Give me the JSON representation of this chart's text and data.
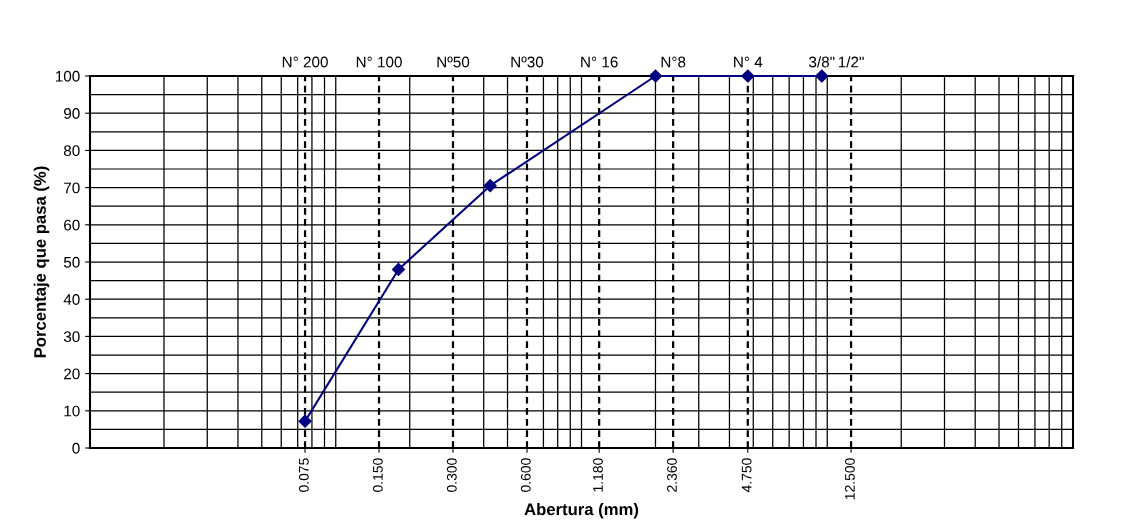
{
  "chart_data": {
    "type": "line",
    "xlabel": "Abertura (mm)",
    "ylabel": "Porcentaje que pasa (%)",
    "log": "x",
    "xlim": [
      0.01,
      100
    ],
    "ylim": [
      0,
      100
    ],
    "xticks": [
      {
        "value": 0.075,
        "label": "0.075"
      },
      {
        "value": 0.15,
        "label": "0.150"
      },
      {
        "value": 0.3,
        "label": "0.300"
      },
      {
        "value": 0.6,
        "label": "0.600"
      },
      {
        "value": 1.18,
        "label": "1.180"
      },
      {
        "value": 2.36,
        "label": "2.360"
      },
      {
        "value": 4.75,
        "label": "4.750"
      },
      {
        "value": 12.5,
        "label": "12.500"
      }
    ],
    "annotations": [
      {
        "text": "3/8\"",
        "x": 9.5,
        "y": 100
      },
      {
        "text": "1/2\"",
        "x": 12.5,
        "y": 100
      }
    ],
    "yticks": [
      0,
      10,
      20,
      30,
      40,
      50,
      60,
      70,
      80,
      90,
      100
    ],
    "grid": true,
    "marker": "diamond",
    "line_style": "solid",
    "series": [
      {
        "color": "#000080",
        "x": [
          0.075,
          0.18,
          0.425,
          2.0,
          4.75,
          9.5
        ],
        "values": [
          7.2,
          48,
          70.5,
          100,
          100,
          100
        ]
      }
    ],
    "ref_lines": [
      {
        "axis": "x",
        "value": 0.075,
        "label": "N° 200",
        "color": "#000000",
        "line_style": "dashed"
      },
      {
        "axis": "x",
        "value": 0.15,
        "label": "N° 100",
        "color": "#000000",
        "line_style": "dashed"
      },
      {
        "axis": "x",
        "value": 0.3,
        "label": "Nº50",
        "color": "#000000",
        "line_style": "dashed"
      },
      {
        "axis": "x",
        "value": 0.6,
        "label": "Nº30",
        "color": "#000000",
        "line_style": "dashed"
      },
      {
        "axis": "x",
        "value": 1.18,
        "label": "N° 16",
        "color": "#000000",
        "line_style": "dashed"
      },
      {
        "axis": "x",
        "value": 2.36,
        "label": "N°8",
        "color": "#000000",
        "line_style": "dashed"
      },
      {
        "axis": "x",
        "value": 4.75,
        "label": "N° 4",
        "color": "#000000",
        "line_style": "dashed"
      },
      {
        "axis": "x",
        "value": 12.5,
        "color": "#000000",
        "line_style": "dashed"
      }
    ]
  }
}
